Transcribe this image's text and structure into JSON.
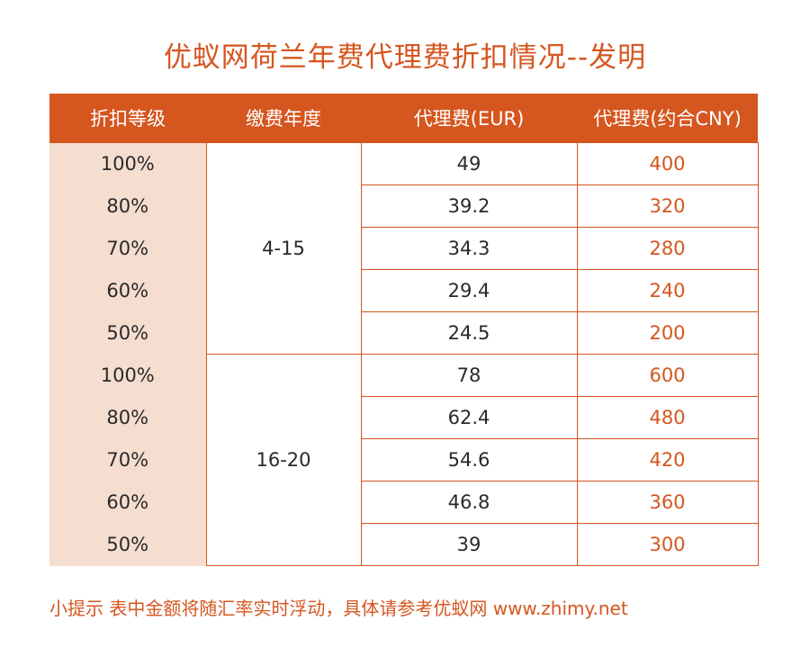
{
  "title": "优蚁网荷兰年费代理费折扣情况--发明",
  "table": {
    "headers": [
      "折扣等级",
      "缴费年度",
      "代理费(EUR)",
      "代理费(约合CNY)"
    ],
    "groups": [
      {
        "years": "4-15",
        "rows": [
          {
            "discount": "100%",
            "eur": "49",
            "cny": "400"
          },
          {
            "discount": "80%",
            "eur": "39.2",
            "cny": "320"
          },
          {
            "discount": "70%",
            "eur": "34.3",
            "cny": "280"
          },
          {
            "discount": "60%",
            "eur": "29.4",
            "cny": "240"
          },
          {
            "discount": "50%",
            "eur": "24.5",
            "cny": "200"
          }
        ]
      },
      {
        "years": "16-20",
        "rows": [
          {
            "discount": "100%",
            "eur": "78",
            "cny": "600"
          },
          {
            "discount": "80%",
            "eur": "62.4",
            "cny": "480"
          },
          {
            "discount": "70%",
            "eur": "54.6",
            "cny": "420"
          },
          {
            "discount": "60%",
            "eur": "46.8",
            "cny": "360"
          },
          {
            "discount": "50%",
            "eur": "39",
            "cny": "300"
          }
        ]
      }
    ]
  },
  "tip": "小提示  表中金额将随汇率实时浮动，具体请参考优蚁网 www.zhimy.net",
  "colors": {
    "accent": "#d5561f",
    "level_background": "#f5ddd0"
  }
}
